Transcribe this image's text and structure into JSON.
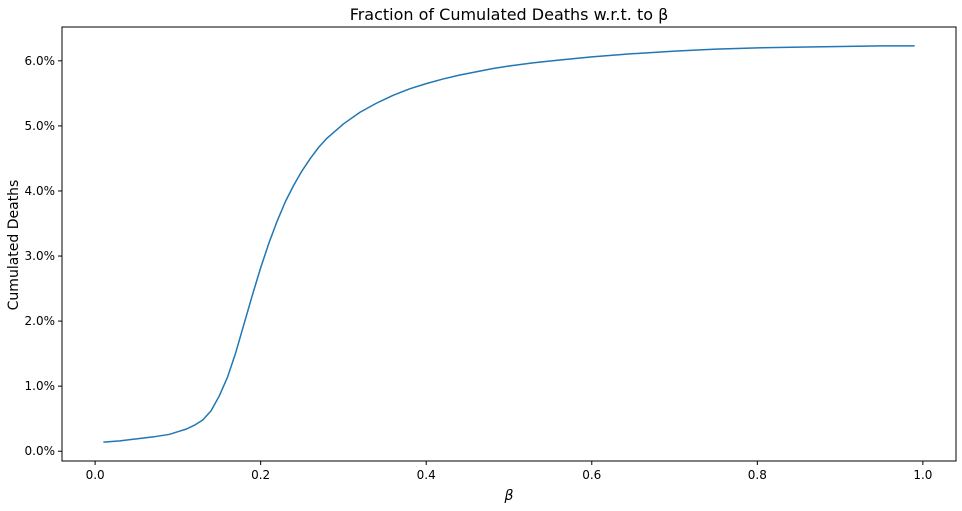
{
  "chart_data": {
    "type": "line",
    "title": "Fraction of Cumulated Deaths w.r.t. to β",
    "xlabel": "β",
    "ylabel": "Cumulated Deaths",
    "xlim": [
      -0.04,
      1.04
    ],
    "ylim": [
      -0.0015,
      0.0652
    ],
    "x_ticks": [
      0.0,
      0.2,
      0.4,
      0.6,
      0.8,
      1.0
    ],
    "x_tick_labels": [
      "0.0",
      "0.2",
      "0.4",
      "0.6",
      "0.8",
      "1.0"
    ],
    "y_ticks": [
      0.0,
      0.01,
      0.02,
      0.03,
      0.04,
      0.05,
      0.06
    ],
    "y_tick_labels": [
      "0.0%",
      "1.0%",
      "2.0%",
      "3.0%",
      "4.0%",
      "5.0%",
      "6.0%"
    ],
    "grid": false,
    "line_color": "#1f77b4",
    "series": [
      {
        "x": [
          0.01,
          0.03,
          0.05,
          0.07,
          0.09,
          0.1,
          0.11,
          0.12,
          0.13,
          0.14,
          0.15,
          0.16,
          0.17,
          0.18,
          0.19,
          0.2,
          0.21,
          0.22,
          0.23,
          0.24,
          0.25,
          0.26,
          0.27,
          0.28,
          0.3,
          0.32,
          0.34,
          0.36,
          0.38,
          0.4,
          0.42,
          0.44,
          0.46,
          0.48,
          0.5,
          0.53,
          0.56,
          0.6,
          0.65,
          0.7,
          0.75,
          0.8,
          0.85,
          0.9,
          0.95,
          0.99
        ],
        "y": [
          0.0014,
          0.0016,
          0.0019,
          0.0022,
          0.0026,
          0.003,
          0.0034,
          0.004,
          0.0048,
          0.0062,
          0.0085,
          0.0114,
          0.0152,
          0.0196,
          0.024,
          0.0282,
          0.032,
          0.0354,
          0.0384,
          0.0409,
          0.0431,
          0.045,
          0.0467,
          0.0481,
          0.0503,
          0.0521,
          0.0535,
          0.0547,
          0.0557,
          0.0565,
          0.0572,
          0.0578,
          0.0583,
          0.0588,
          0.0592,
          0.0597,
          0.0601,
          0.0606,
          0.0611,
          0.0615,
          0.0618,
          0.062,
          0.0621,
          0.0622,
          0.0623,
          0.0623
        ]
      }
    ]
  }
}
